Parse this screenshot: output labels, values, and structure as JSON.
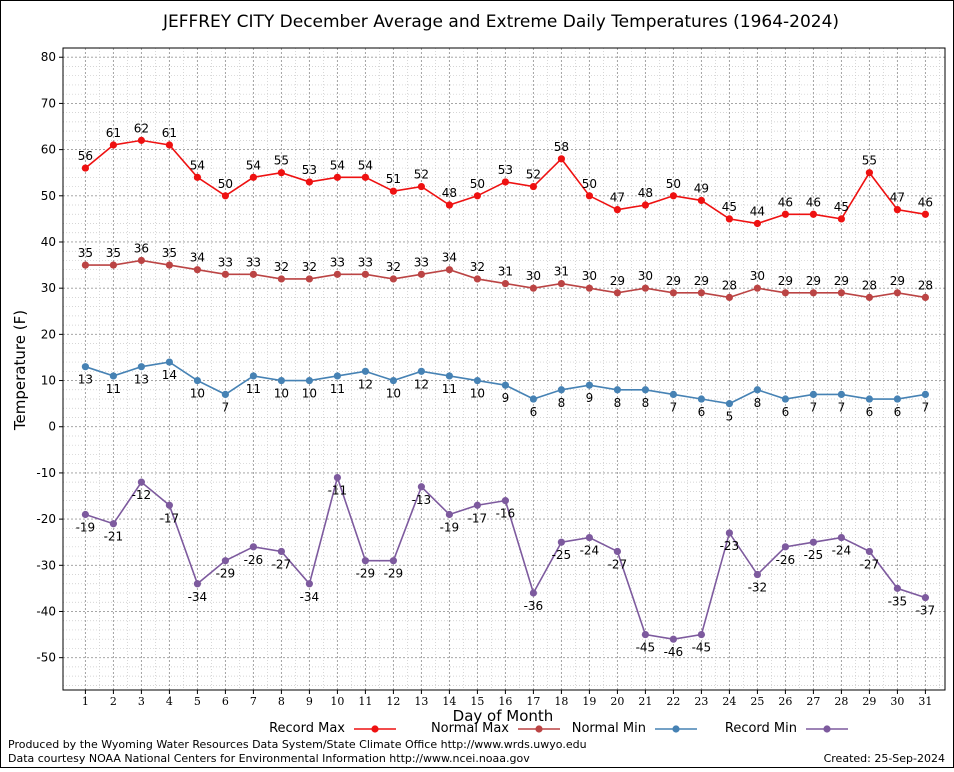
{
  "chart_data": {
    "type": "line",
    "title": "JEFFREY CITY December Average and Extreme Daily Temperatures (1964-2024)",
    "xlabel": "Day of Month",
    "ylabel": "Temperature (F)",
    "ylim": [
      -57,
      82
    ],
    "yticks": [
      80,
      70,
      60,
      50,
      40,
      30,
      20,
      10,
      0,
      -10,
      -20,
      -30,
      -40,
      -50
    ],
    "grid": true,
    "legend_position": "bottom",
    "x": [
      1,
      2,
      3,
      4,
      5,
      6,
      7,
      8,
      9,
      10,
      11,
      12,
      13,
      14,
      15,
      16,
      17,
      18,
      19,
      20,
      21,
      22,
      23,
      24,
      25,
      26,
      27,
      28,
      29,
      30,
      31
    ],
    "series": [
      {
        "name": "Record Max",
        "color": "#ee1111",
        "label_side": "above",
        "values": [
          56,
          61,
          62,
          61,
          54,
          50,
          54,
          55,
          53,
          54,
          54,
          51,
          52,
          48,
          50,
          53,
          52,
          58,
          50,
          47,
          48,
          50,
          49,
          45,
          44,
          46,
          46,
          45,
          55,
          47,
          46
        ]
      },
      {
        "name": "Normal Max",
        "color": "#bb4444",
        "label_side": "above",
        "values": [
          35,
          35,
          36,
          35,
          34,
          33,
          33,
          32,
          32,
          33,
          33,
          32,
          33,
          34,
          32,
          31,
          30,
          31,
          30,
          29,
          30,
          29,
          29,
          28,
          30,
          29,
          29,
          29,
          28,
          29,
          28
        ]
      },
      {
        "name": "Normal Min",
        "color": "#4682b4",
        "label_side": "below",
        "values": [
          13,
          11,
          13,
          14,
          10,
          7,
          11,
          10,
          10,
          11,
          12,
          10,
          12,
          11,
          10,
          9,
          6,
          8,
          9,
          8,
          8,
          7,
          6,
          5,
          8,
          6,
          7,
          7,
          6,
          6,
          7
        ]
      },
      {
        "name": "Record Min",
        "color": "#7d5a9e",
        "label_side": "below",
        "values": [
          -19,
          -21,
          -12,
          -17,
          -34,
          -29,
          -26,
          -27,
          -34,
          -11,
          -29,
          -29,
          -13,
          -19,
          -17,
          -16,
          -36,
          -25,
          -24,
          -27,
          -45,
          -46,
          -45,
          -23,
          -32,
          -26,
          -25,
          -24,
          -27,
          -35,
          -37
        ]
      }
    ]
  },
  "footer": {
    "line1": "Produced by the Wyoming Water Resources Data System/State Climate Office http://www.wrds.uwyo.edu",
    "line2": "Data courtesy NOAA National Centers for Environmental Information http://www.ncei.noaa.gov",
    "created": "Created:  25-Sep-2024"
  }
}
